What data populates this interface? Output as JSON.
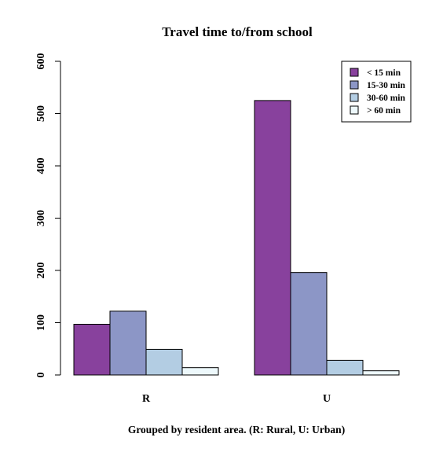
{
  "chart_data": {
    "type": "bar",
    "title": "Travel time to/from school",
    "xlabel": "Grouped by resident area. (R: Rural, U: Urban)",
    "ylabel": "",
    "ylim": [
      0,
      600
    ],
    "yticks": [
      "0",
      "100",
      "200",
      "300",
      "400",
      "500",
      "600"
    ],
    "categories": [
      "R",
      "U"
    ],
    "legend_position": "top-right",
    "grid": false,
    "series": [
      {
        "name": "<  15 min",
        "color": "#88419d",
        "values": [
          97,
          525
        ]
      },
      {
        "name": "15-30 min",
        "color": "#8c96c6",
        "values": [
          122,
          196
        ]
      },
      {
        "name": "30-60 min",
        "color": "#b3cde3",
        "values": [
          49,
          28
        ]
      },
      {
        "name": "> 60 min",
        "color": "#edf8fb",
        "values": [
          14,
          8
        ]
      }
    ]
  }
}
